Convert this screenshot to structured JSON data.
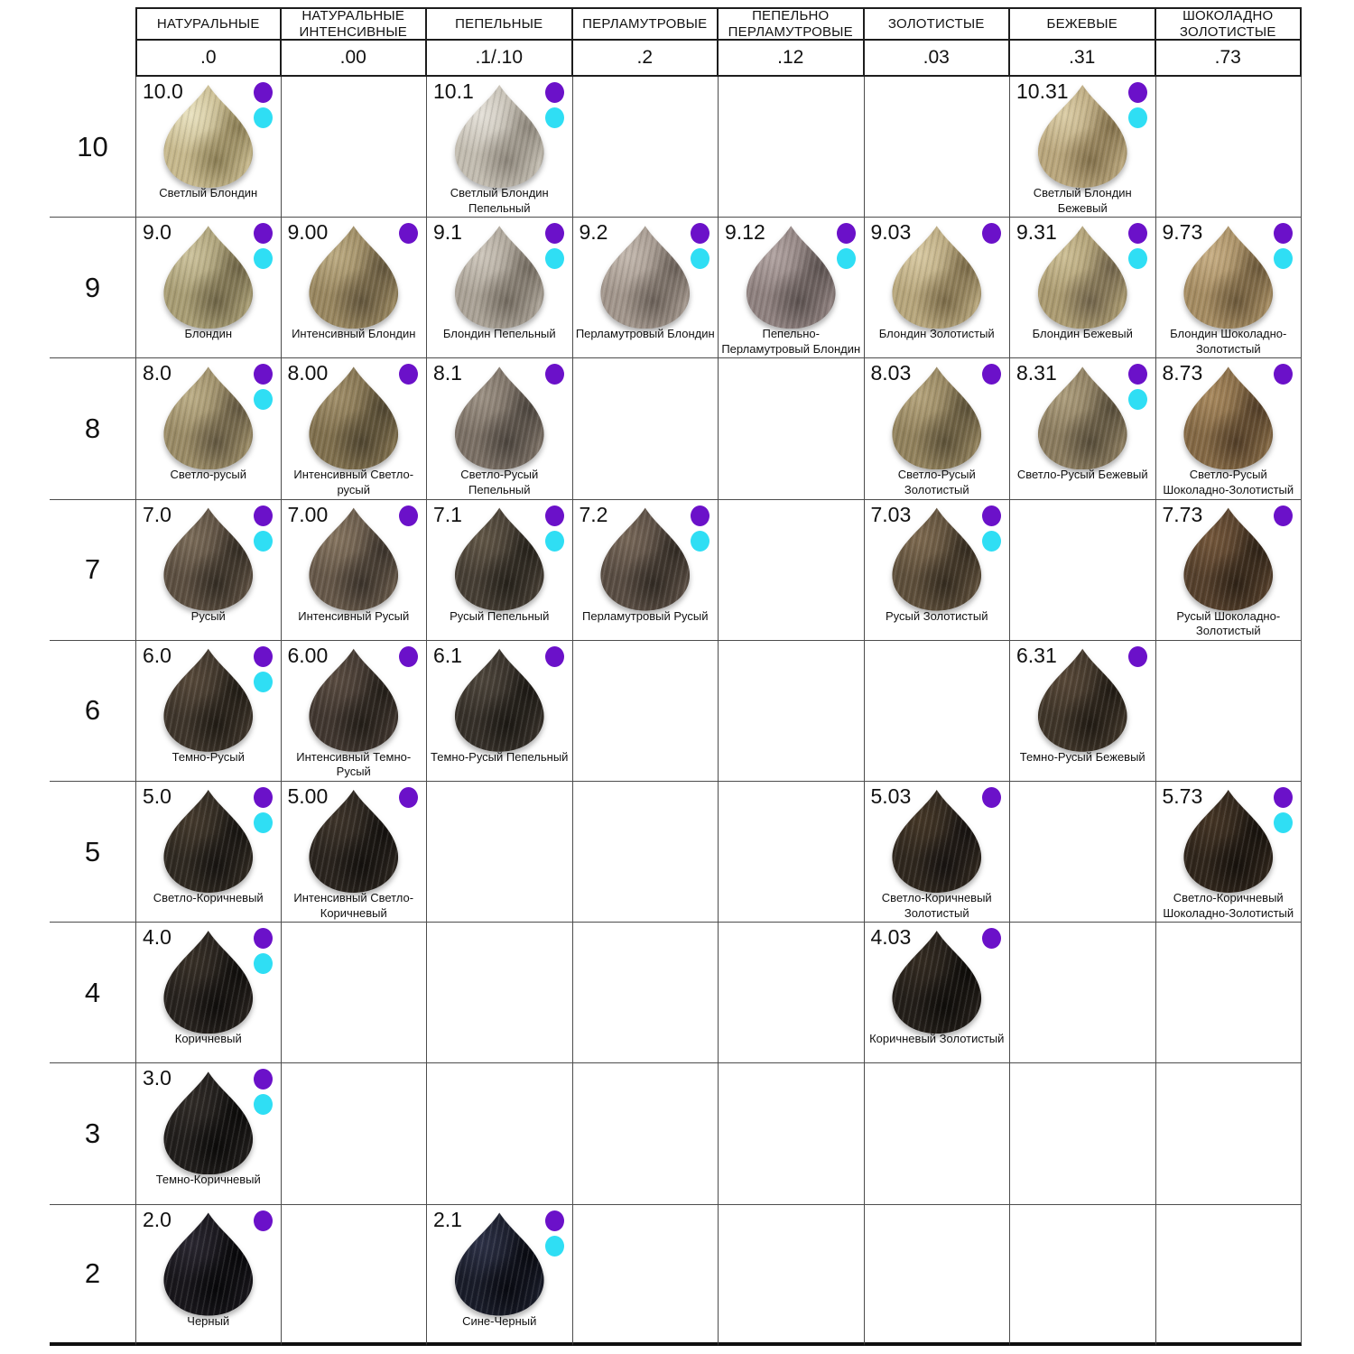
{
  "legend_colors": {
    "purple": "#6b11c9",
    "cyan": "#2fdef4"
  },
  "columns": [
    {
      "label": "НАТУРАЛЬНЫЕ",
      "code": ".0"
    },
    {
      "label": "НАТУРАЛЬНЫЕ ИНТЕНСИВНЫЕ",
      "code": ".00"
    },
    {
      "label": "ПЕПЕЛЬНЫЕ",
      "code": ".1/.10"
    },
    {
      "label": "ПЕРЛАМУТРОВЫЕ",
      "code": ".2"
    },
    {
      "label": "ПЕПЕЛЬНО ПЕРЛАМУТРОВЫЕ",
      "code": ".12"
    },
    {
      "label": "ЗОЛОТИСТЫЕ",
      "code": ".03"
    },
    {
      "label": "БЕЖЕВЫЕ",
      "code": ".31"
    },
    {
      "label": "ШОКОЛАДНО ЗОЛОТИСТЫЕ",
      "code": ".73"
    }
  ],
  "rows": [
    {
      "level": "10",
      "cells": [
        {
          "col": 0,
          "code": "10.0",
          "name": "Светлый Блондин",
          "dots": [
            "purple",
            "cyan"
          ],
          "swatch": {
            "base": "#c6b88c",
            "light": "#e9e2c0",
            "dark": "#8a7d54"
          }
        },
        {
          "col": 2,
          "code": "10.1",
          "name": "Светлый Блондин Пепельный",
          "dots": [
            "purple",
            "cyan"
          ],
          "swatch": {
            "base": "#c2bcb0",
            "light": "#e4e0d8",
            "dark": "#8c857a"
          }
        },
        {
          "col": 6,
          "code": "10.31",
          "name": "Светлый Блондин Бежевый",
          "dots": [
            "purple",
            "cyan"
          ],
          "swatch": {
            "base": "#b9a67c",
            "light": "#dbcda6",
            "dark": "#82704b"
          }
        }
      ]
    },
    {
      "level": "9",
      "cells": [
        {
          "col": 0,
          "code": "9.0",
          "name": "Блондин",
          "dots": [
            "purple",
            "cyan"
          ],
          "swatch": {
            "base": "#a89d74",
            "light": "#ccc29c",
            "dark": "#6e6446"
          }
        },
        {
          "col": 1,
          "code": "9.00",
          "name": "Интенсивный Блондин",
          "dots": [
            "purple"
          ],
          "swatch": {
            "base": "#998760",
            "light": "#bcab82",
            "dark": "#62553c"
          }
        },
        {
          "col": 2,
          "code": "9.1",
          "name": "Блондин Пепельный",
          "dots": [
            "purple",
            "cyan"
          ],
          "swatch": {
            "base": "#aaa296",
            "light": "#cdc6bb",
            "dark": "#726a5f"
          }
        },
        {
          "col": 3,
          "code": "9.2",
          "name": "Перламутровый Блондин",
          "dots": [
            "purple",
            "cyan"
          ],
          "swatch": {
            "base": "#a2968c",
            "light": "#c3b8ae",
            "dark": "#6a6058"
          }
        },
        {
          "col": 4,
          "code": "9.12",
          "name": "Пепельно-Перламутровый Блондин",
          "dots": [
            "purple",
            "cyan"
          ],
          "swatch": {
            "base": "#8f817f",
            "light": "#b1a3a1",
            "dark": "#5b514f"
          }
        },
        {
          "col": 5,
          "code": "9.03",
          "name": "Блондин Золотистый",
          "dots": [
            "purple"
          ],
          "swatch": {
            "base": "#b7a67c",
            "light": "#d8c9a2",
            "dark": "#7a6a48"
          }
        },
        {
          "col": 6,
          "code": "9.31",
          "name": "Блондин Бежевый",
          "dots": [
            "purple",
            "cyan"
          ],
          "swatch": {
            "base": "#ab9b71",
            "light": "#cdbf95",
            "dark": "#70634a"
          }
        },
        {
          "col": 7,
          "code": "9.73",
          "name": "Блондин Шоколадно-Золотистый",
          "dots": [
            "purple",
            "cyan"
          ],
          "swatch": {
            "base": "#a58c62",
            "light": "#c7ae84",
            "dark": "#6b583a"
          }
        }
      ]
    },
    {
      "level": "8",
      "cells": [
        {
          "col": 0,
          "code": "8.0",
          "name": "Светло-русый",
          "dots": [
            "purple",
            "cyan"
          ],
          "swatch": {
            "base": "#9a8b66",
            "light": "#bcae87",
            "dark": "#625740"
          }
        },
        {
          "col": 1,
          "code": "8.00",
          "name": "Интенсивный Светло-русый",
          "dots": [
            "purple"
          ],
          "swatch": {
            "base": "#80704e",
            "light": "#a18f6a",
            "dark": "#4f4530"
          }
        },
        {
          "col": 2,
          "code": "8.1",
          "name": "Светло-Русый Пепельный",
          "dots": [
            "purple"
          ],
          "swatch": {
            "base": "#7b7065",
            "light": "#9c9184",
            "dark": "#4b443d"
          }
        },
        {
          "col": 5,
          "code": "8.03",
          "name": "Светло-Русый Золотистый",
          "dots": [
            "purple"
          ],
          "swatch": {
            "base": "#92825d",
            "light": "#b5a47c",
            "dark": "#5c5138"
          }
        },
        {
          "col": 6,
          "code": "8.31",
          "name": "Светло-Русый Бежевый",
          "dots": [
            "purple",
            "cyan"
          ],
          "swatch": {
            "base": "#8b7c5f",
            "light": "#ad9e7d",
            "dark": "#564c39"
          }
        },
        {
          "col": 7,
          "code": "8.73",
          "name": "Светло-Русый Шоколадно-Золотистый",
          "dots": [
            "purple"
          ],
          "swatch": {
            "base": "#846945",
            "light": "#a8895e",
            "dark": "#513d27"
          }
        }
      ]
    },
    {
      "level": "7",
      "cells": [
        {
          "col": 0,
          "code": "7.0",
          "name": "Русый",
          "dots": [
            "purple",
            "cyan"
          ],
          "swatch": {
            "base": "#5c4f41",
            "light": "#7b6c59",
            "dark": "#332c23"
          }
        },
        {
          "col": 1,
          "code": "7.00",
          "name": "Интенсивный Русый",
          "dots": [
            "purple"
          ],
          "swatch": {
            "base": "#665849",
            "light": "#867560",
            "dark": "#3a322a"
          }
        },
        {
          "col": 2,
          "code": "7.1",
          "name": "Русый Пепельный",
          "dots": [
            "purple",
            "cyan"
          ],
          "swatch": {
            "base": "#463e34",
            "light": "#625747",
            "dark": "#25211a"
          }
        },
        {
          "col": 3,
          "code": "7.2",
          "name": "Перламутровый Русый",
          "dots": [
            "purple",
            "cyan"
          ],
          "swatch": {
            "base": "#594d43",
            "light": "#776758",
            "dark": "#312a23"
          }
        },
        {
          "col": 5,
          "code": "7.03",
          "name": "Русый Золотистый",
          "dots": [
            "purple",
            "cyan"
          ],
          "swatch": {
            "base": "#5e4f3b",
            "light": "#7e6a50",
            "dark": "#342b1f"
          }
        },
        {
          "col": 7,
          "code": "7.73",
          "name": "Русый Шоколадно-Золотистый",
          "dots": [
            "purple"
          ],
          "swatch": {
            "base": "#55402c",
            "light": "#74573b",
            "dark": "#2e2216"
          }
        }
      ]
    },
    {
      "level": "6",
      "cells": [
        {
          "col": 0,
          "code": "6.0",
          "name": "Темно-Русый",
          "dots": [
            "purple",
            "cyan"
          ],
          "swatch": {
            "base": "#3e352b",
            "light": "#57493a",
            "dark": "#201b14"
          }
        },
        {
          "col": 1,
          "code": "6.00",
          "name": "Интенсивный Темно-Русый",
          "dots": [
            "purple"
          ],
          "swatch": {
            "base": "#413730",
            "light": "#5a4c41",
            "dark": "#221d17"
          }
        },
        {
          "col": 2,
          "code": "6.1",
          "name": "Темно-Русый Пепельный",
          "dots": [
            "purple"
          ],
          "swatch": {
            "base": "#363029",
            "light": "#4e463c",
            "dark": "#1b1813"
          }
        },
        {
          "col": 6,
          "code": "6.31",
          "name": "Темно-Русый Бежевый",
          "dots": [
            "purple"
          ],
          "swatch": {
            "base": "#3f3529",
            "light": "#584838",
            "dark": "#201a13"
          }
        }
      ]
    },
    {
      "level": "5",
      "cells": [
        {
          "col": 0,
          "code": "5.0",
          "name": "Светло-Коричневый",
          "dots": [
            "purple",
            "cyan"
          ],
          "swatch": {
            "base": "#2f2921",
            "light": "#453a2d",
            "dark": "#161310"
          }
        },
        {
          "col": 1,
          "code": "5.00",
          "name": "Интенсивный Светло-Коричневый",
          "dots": [
            "purple"
          ],
          "swatch": {
            "base": "#2a241e",
            "light": "#3e342a",
            "dark": "#13100d"
          }
        },
        {
          "col": 5,
          "code": "5.03",
          "name": "Светло-Коричневый Золотистый",
          "dots": [
            "purple"
          ],
          "swatch": {
            "base": "#2f271e",
            "light": "#453727",
            "dark": "#161210"
          }
        },
        {
          "col": 7,
          "code": "5.73",
          "name": "Светло-Коричневый Шоколадно-Золотистый",
          "dots": [
            "purple",
            "cyan"
          ],
          "swatch": {
            "base": "#2f251b",
            "light": "#453525",
            "dark": "#16110c"
          }
        }
      ]
    },
    {
      "level": "4",
      "cells": [
        {
          "col": 0,
          "code": "4.0",
          "name": "Коричневый",
          "dots": [
            "purple",
            "cyan"
          ],
          "swatch": {
            "base": "#26211d",
            "light": "#383027",
            "dark": "#0f0d0b"
          }
        },
        {
          "col": 5,
          "code": "4.03",
          "name": "Коричневый Золотистый",
          "dots": [
            "purple"
          ],
          "swatch": {
            "base": "#231e19",
            "light": "#342b21",
            "dark": "#0e0c09"
          }
        }
      ]
    },
    {
      "level": "3",
      "cells": [
        {
          "col": 0,
          "code": "3.0",
          "name": "Темно-Коричневый",
          "dots": [
            "purple",
            "cyan"
          ],
          "swatch": {
            "base": "#201d1b",
            "light": "#302b27",
            "dark": "#0b0a09"
          }
        }
      ]
    },
    {
      "level": "2",
      "cells": [
        {
          "col": 0,
          "code": "2.0",
          "name": "Черный",
          "dots": [
            "purple"
          ],
          "swatch": {
            "base": "#18161b",
            "light": "#2a2731",
            "dark": "#070709"
          }
        },
        {
          "col": 2,
          "code": "2.1",
          "name": "Сине-Черный",
          "dots": [
            "purple",
            "cyan"
          ],
          "swatch": {
            "base": "#191c29",
            "light": "#2d3147",
            "dark": "#080910"
          }
        }
      ]
    }
  ]
}
